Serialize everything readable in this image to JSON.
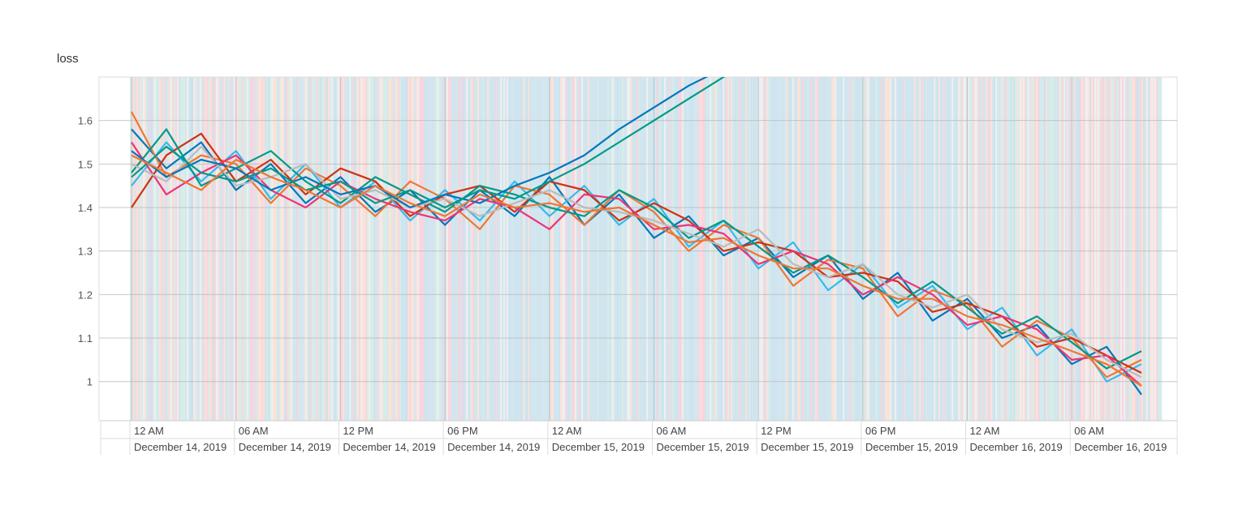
{
  "chart_data": {
    "type": "line",
    "title": "loss",
    "xlabel": "",
    "ylabel": "",
    "ylim": [
      0.91,
      1.7
    ],
    "xlim": [
      "2019-12-13T22:08",
      "2019-12-16T12:03"
    ],
    "grid": true,
    "legend": "none",
    "y_ticks": [
      "1",
      "1.1",
      "1.2",
      "1.3",
      "1.4",
      "1.5",
      "1.6"
    ],
    "y_tick_values": [
      1.0,
      1.1,
      1.2,
      1.3,
      1.4,
      1.5,
      1.6
    ],
    "x_ticks": [
      {
        "time": "2019-12-14T00:00",
        "label": "12 AM",
        "date": "December 14, 2019"
      },
      {
        "time": "2019-12-14T06:00",
        "label": "06 AM",
        "date": "December 14, 2019"
      },
      {
        "time": "2019-12-14T12:00",
        "label": "12 PM",
        "date": "December 14, 2019"
      },
      {
        "time": "2019-12-14T18:00",
        "label": "06 PM",
        "date": "December 14, 2019"
      },
      {
        "time": "2019-12-15T00:00",
        "label": "12 AM",
        "date": "December 15, 2019"
      },
      {
        "time": "2019-12-15T06:00",
        "label": "06 AM",
        "date": "December 15, 2019"
      },
      {
        "time": "2019-12-15T12:00",
        "label": "12 PM",
        "date": "December 15, 2019"
      },
      {
        "time": "2019-12-15T18:00",
        "label": "06 PM",
        "date": "December 15, 2019"
      },
      {
        "time": "2019-12-16T00:00",
        "label": "12 AM",
        "date": "December 16, 2019"
      },
      {
        "time": "2019-12-16T06:00",
        "label": "06 AM",
        "date": "December 16, 2019"
      }
    ],
    "x": [
      "2019-12-14T00:00",
      "2019-12-14T02:00",
      "2019-12-14T04:00",
      "2019-12-14T06:00",
      "2019-12-14T08:00",
      "2019-12-14T10:00",
      "2019-12-14T12:00",
      "2019-12-14T14:00",
      "2019-12-14T16:00",
      "2019-12-14T18:00",
      "2019-12-14T20:00",
      "2019-12-14T22:00",
      "2019-12-15T00:00",
      "2019-12-15T02:00",
      "2019-12-15T04:00",
      "2019-12-15T06:00",
      "2019-12-15T08:00",
      "2019-12-15T10:00",
      "2019-12-15T12:00",
      "2019-12-15T14:00",
      "2019-12-15T16:00",
      "2019-12-15T18:00",
      "2019-12-15T20:00",
      "2019-12-15T22:00",
      "2019-12-16T00:00",
      "2019-12-16T02:00",
      "2019-12-16T04:00",
      "2019-12-16T06:00",
      "2019-12-16T08:00",
      "2019-12-16T10:00"
    ],
    "series": [
      {
        "color": "#0077bb",
        "values": [
          1.58,
          1.49,
          1.55,
          1.44,
          1.5,
          1.41,
          1.47,
          1.39,
          1.44,
          1.36,
          1.44,
          1.38,
          1.47,
          1.36,
          1.43,
          1.33,
          1.38,
          1.29,
          1.33,
          1.24,
          1.29,
          1.19,
          1.25,
          1.14,
          1.19,
          1.1,
          1.13,
          1.04,
          1.08,
          0.97
        ]
      },
      {
        "color": "#33bbee",
        "values": [
          1.45,
          1.55,
          1.46,
          1.53,
          1.42,
          1.5,
          1.4,
          1.46,
          1.37,
          1.44,
          1.37,
          1.46,
          1.38,
          1.45,
          1.36,
          1.42,
          1.31,
          1.37,
          1.26,
          1.32,
          1.21,
          1.27,
          1.17,
          1.22,
          1.12,
          1.17,
          1.06,
          1.12,
          1.0,
          1.04
        ]
      },
      {
        "color": "#ee7733",
        "values": [
          1.62,
          1.47,
          1.52,
          1.5,
          1.41,
          1.49,
          1.45,
          1.38,
          1.46,
          1.42,
          1.35,
          1.45,
          1.43,
          1.36,
          1.44,
          1.39,
          1.3,
          1.36,
          1.33,
          1.22,
          1.28,
          1.26,
          1.15,
          1.21,
          1.18,
          1.08,
          1.14,
          1.1,
          1.01,
          1.05
        ]
      },
      {
        "color": "#cc3311",
        "values": [
          1.4,
          1.52,
          1.57,
          1.46,
          1.51,
          1.43,
          1.49,
          1.46,
          1.38,
          1.43,
          1.45,
          1.39,
          1.46,
          1.44,
          1.37,
          1.41,
          1.37,
          1.3,
          1.32,
          1.3,
          1.24,
          1.25,
          1.23,
          1.16,
          1.18,
          1.15,
          1.08,
          1.1,
          1.06,
          1.02
        ]
      },
      {
        "color": "#ee3377",
        "values": [
          1.55,
          1.43,
          1.48,
          1.52,
          1.44,
          1.4,
          1.46,
          1.42,
          1.39,
          1.37,
          1.42,
          1.4,
          1.35,
          1.43,
          1.42,
          1.35,
          1.36,
          1.34,
          1.27,
          1.3,
          1.27,
          1.2,
          1.24,
          1.2,
          1.13,
          1.15,
          1.12,
          1.05,
          1.06,
          0.99
        ]
      },
      {
        "color": "#009988",
        "values": [
          1.48,
          1.58,
          1.45,
          1.49,
          1.53,
          1.46,
          1.41,
          1.47,
          1.43,
          1.39,
          1.45,
          1.43,
          1.4,
          1.38,
          1.44,
          1.4,
          1.33,
          1.37,
          1.31,
          1.25,
          1.29,
          1.24,
          1.18,
          1.23,
          1.17,
          1.11,
          1.15,
          1.09,
          1.03,
          1.07
        ]
      },
      {
        "color": "#bbbbbb",
        "values": [
          1.5,
          1.46,
          1.54,
          1.45,
          1.47,
          1.5,
          1.42,
          1.44,
          1.4,
          1.42,
          1.38,
          1.41,
          1.44,
          1.4,
          1.39,
          1.37,
          1.34,
          1.31,
          1.35,
          1.27,
          1.24,
          1.27,
          1.2,
          1.17,
          1.2,
          1.12,
          1.09,
          1.11,
          1.05,
          1.01
        ]
      },
      {
        "color": "#0077bb",
        "values": [
          1.53,
          1.47,
          1.51,
          1.49,
          1.44,
          1.47,
          1.43,
          1.45,
          1.4,
          1.43,
          1.41,
          1.45,
          1.48,
          1.52,
          1.58,
          1.63,
          1.68,
          1.72,
          null,
          null,
          null,
          null,
          null,
          null,
          null,
          null,
          null,
          null,
          null,
          null
        ]
      },
      {
        "color": "#009988",
        "values": [
          1.47,
          1.54,
          1.48,
          1.46,
          1.49,
          1.44,
          1.46,
          1.41,
          1.44,
          1.4,
          1.44,
          1.42,
          1.46,
          1.5,
          1.55,
          1.6,
          1.65,
          1.7,
          1.74,
          null,
          null,
          null,
          null,
          null,
          null,
          null,
          null,
          null,
          null,
          null
        ]
      },
      {
        "color": "#ee7733",
        "values": [
          1.52,
          1.48,
          1.44,
          1.51,
          1.47,
          1.44,
          1.4,
          1.45,
          1.41,
          1.38,
          1.43,
          1.4,
          1.41,
          1.39,
          1.4,
          1.36,
          1.32,
          1.33,
          1.29,
          1.26,
          1.26,
          1.22,
          1.19,
          1.19,
          1.15,
          1.13,
          1.1,
          1.07,
          1.04,
          0.99
        ]
      }
    ]
  }
}
